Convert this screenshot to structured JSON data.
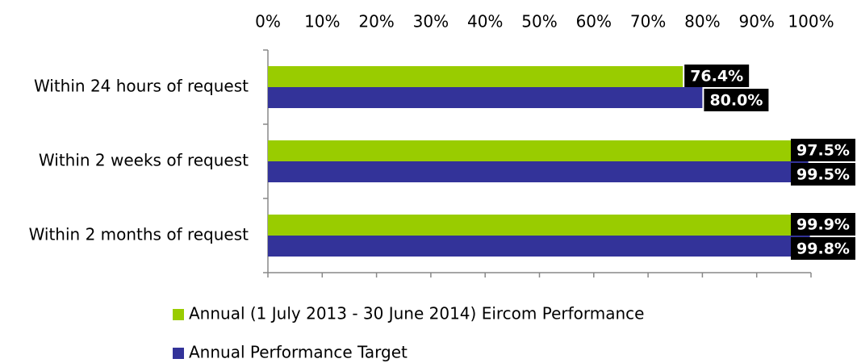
{
  "chart_data": {
    "type": "hbar",
    "categories": [
      "Within 24 hours of request",
      "Within 2 weeks of request",
      "Within 2 months of request"
    ],
    "series": [
      {
        "name": "Annual (1 July 2013 - 30 June 2014) Eircom Performance",
        "color": "#99cc00",
        "values": [
          76.4,
          97.5,
          99.9
        ],
        "value_labels": [
          "76.4%",
          "97.5%",
          "99.9%"
        ]
      },
      {
        "name": "Annual Performance Target",
        "color": "#333399",
        "values": [
          80.0,
          99.5,
          99.8
        ],
        "value_labels": [
          "80.0%",
          "99.5%",
          "99.8%"
        ]
      }
    ],
    "xlim": [
      0,
      100
    ],
    "xticks": [
      {
        "value": 0,
        "label": "0%"
      },
      {
        "value": 10,
        "label": "10%"
      },
      {
        "value": 20,
        "label": "20%"
      },
      {
        "value": 30,
        "label": "30%"
      },
      {
        "value": 40,
        "label": "40%"
      },
      {
        "value": 50,
        "label": "50%"
      },
      {
        "value": 60,
        "label": "60%"
      },
      {
        "value": 70,
        "label": "70%"
      },
      {
        "value": 80,
        "label": "80%"
      },
      {
        "value": 90,
        "label": "90%"
      },
      {
        "value": 100,
        "label": "100%"
      }
    ],
    "legend": "bottom-left"
  }
}
